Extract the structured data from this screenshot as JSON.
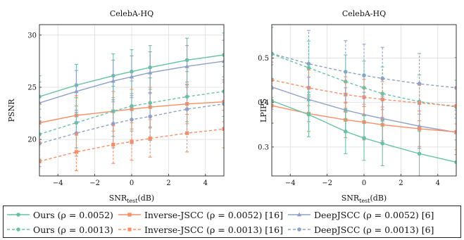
{
  "colors": {
    "ours": "#66c2a5",
    "inverse": "#fc8d62",
    "deepjscc": "#8da0cb",
    "grid": "#dddddd",
    "axis": "#222222"
  },
  "legend": {
    "entries": [
      {
        "label": "Ours (ρ = 0.0052)",
        "series": "ours",
        "style": "solid",
        "marker": "circle"
      },
      {
        "label": "Inverse-JSCC (ρ = 0.0052) [16]",
        "series": "inverse",
        "style": "solid",
        "marker": "square"
      },
      {
        "label": "DeepJSCC (ρ = 0.0052) [6]",
        "series": "deepjscc",
        "style": "solid",
        "marker": "triangle"
      },
      {
        "label": "Ours (ρ = 0.0013)",
        "series": "ours",
        "style": "dashed",
        "marker": "circle"
      },
      {
        "label": "Inverse-JSCC (ρ = 0.0013) [16]",
        "series": "inverse",
        "style": "dashed",
        "marker": "square"
      },
      {
        "label": "DeepJSCC (ρ = 0.0013) [6]",
        "series": "deepjscc",
        "style": "dashed",
        "marker": "circle"
      }
    ]
  },
  "chart_data": [
    {
      "type": "line",
      "title": "CelebA-HQ",
      "xlabel": "SNR",
      "xlabel_subscript": "test",
      "xlabel_suffix": "(dB)",
      "ylabel": "PSNR",
      "xlim": [
        -5,
        5
      ],
      "ylim": [
        16.5,
        31
      ],
      "xticks": [
        -4,
        -2,
        0,
        2,
        4
      ],
      "yticks": [
        20,
        25,
        30
      ],
      "grid": true,
      "error_bars": true,
      "x": [
        -5,
        -3,
        -1,
        0,
        1,
        3,
        5
      ],
      "series": [
        {
          "key": "ours",
          "style": "solid",
          "marker": "circle",
          "values": [
            24.1,
            25.2,
            26.1,
            26.5,
            26.9,
            27.6,
            28.1
          ],
          "errors": [
            2.0,
            2.0,
            2.1,
            2.1,
            2.1,
            2.1,
            2.1
          ]
        },
        {
          "key": "deepjscc",
          "style": "solid",
          "marker": "triangle",
          "values": [
            23.5,
            24.6,
            25.6,
            26.0,
            26.4,
            27.0,
            27.5
          ],
          "errors": [
            2.0,
            2.0,
            2.0,
            2.0,
            2.0,
            2.0,
            2.0
          ]
        },
        {
          "key": "inverse",
          "style": "solid",
          "marker": "square",
          "values": [
            21.6,
            22.3,
            22.7,
            22.9,
            23.1,
            23.4,
            23.6
          ],
          "errors": [
            1.8,
            1.9,
            1.9,
            1.9,
            1.9,
            1.9,
            1.9
          ]
        },
        {
          "key": "ours",
          "style": "dashed",
          "marker": "circle",
          "values": [
            20.5,
            21.6,
            22.7,
            23.2,
            23.5,
            24.1,
            24.6
          ],
          "errors": [
            2.4,
            2.4,
            2.4,
            2.4,
            2.4,
            2.4,
            2.4
          ]
        },
        {
          "key": "deepjscc",
          "style": "dashed",
          "marker": "circle",
          "values": [
            19.6,
            20.6,
            21.5,
            21.9,
            22.2,
            22.9,
            23.4
          ],
          "errors": [
            2.2,
            2.2,
            2.3,
            2.3,
            2.3,
            2.3,
            2.3
          ]
        },
        {
          "key": "inverse",
          "style": "dashed",
          "marker": "square",
          "values": [
            17.9,
            18.8,
            19.5,
            19.8,
            20.1,
            20.6,
            21.0
          ],
          "errors": [
            1.8,
            1.8,
            1.8,
            1.8,
            1.8,
            1.8,
            1.8
          ]
        }
      ]
    },
    {
      "type": "line",
      "title": "CelebA-HQ",
      "xlabel": "SNR",
      "xlabel_subscript": "test",
      "xlabel_suffix": "(dB)",
      "ylabel": "LPIPS",
      "xlim": [
        -5,
        5
      ],
      "ylim": [
        0.235,
        0.575
      ],
      "xticks": [
        -4,
        -2,
        0,
        2,
        4
      ],
      "yticks": [
        0.3,
        0.4,
        0.5
      ],
      "grid": true,
      "error_bars": true,
      "x": [
        -5,
        -3,
        -1,
        0,
        1,
        3,
        5
      ],
      "series": [
        {
          "key": "deepjscc",
          "style": "dashed",
          "marker": "circle",
          "values": [
            0.51,
            0.487,
            0.469,
            0.461,
            0.454,
            0.442,
            0.433
          ],
          "errors": [
            0.08,
            0.075,
            0.07,
            0.07,
            0.07,
            0.068,
            0.068
          ]
        },
        {
          "key": "ours",
          "style": "dashed",
          "marker": "circle",
          "values": [
            0.509,
            0.478,
            0.447,
            0.433,
            0.42,
            0.402,
            0.39
          ],
          "errors": [
            0.06,
            0.06,
            0.06,
            0.06,
            0.06,
            0.06,
            0.06
          ]
        },
        {
          "key": "inverse",
          "style": "dashed",
          "marker": "square",
          "values": [
            0.451,
            0.433,
            0.418,
            0.412,
            0.407,
            0.399,
            0.392
          ],
          "errors": [
            0.04,
            0.04,
            0.04,
            0.04,
            0.04,
            0.04,
            0.04
          ]
        },
        {
          "key": "deepjscc",
          "style": "solid",
          "marker": "triangle",
          "values": [
            0.435,
            0.407,
            0.383,
            0.373,
            0.364,
            0.347,
            0.333
          ],
          "errors": [
            0.05,
            0.05,
            0.05,
            0.05,
            0.05,
            0.05,
            0.05
          ]
        },
        {
          "key": "inverse",
          "style": "solid",
          "marker": "square",
          "values": [
            0.393,
            0.375,
            0.361,
            0.356,
            0.35,
            0.341,
            0.334
          ],
          "errors": [
            0.04,
            0.04,
            0.04,
            0.04,
            0.04,
            0.04,
            0.04
          ]
        },
        {
          "key": "ours",
          "style": "solid",
          "marker": "circle",
          "values": [
            0.404,
            0.373,
            0.335,
            0.32,
            0.308,
            0.285,
            0.266
          ],
          "errors": [
            0.05,
            0.05,
            0.05,
            0.05,
            0.05,
            0.05,
            0.05
          ]
        }
      ]
    }
  ]
}
